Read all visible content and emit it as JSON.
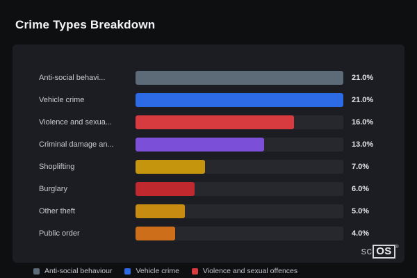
{
  "page": {
    "title": "Crime Types Breakdown"
  },
  "chart_data": {
    "type": "bar",
    "orientation": "horizontal",
    "title": "Crime Types Breakdown",
    "categories": [
      "Anti-social behavi...",
      "Vehicle crime",
      "Violence and sexua...",
      "Criminal damage an...",
      "Shoplifting",
      "Burglary",
      "Other theft",
      "Public order"
    ],
    "values": [
      21.0,
      21.0,
      16.0,
      13.0,
      7.0,
      6.0,
      5.0,
      4.0
    ],
    "value_labels": [
      "21.0%",
      "21.0%",
      "16.0%",
      "13.0%",
      "7.0%",
      "6.0%",
      "5.0%",
      "4.0%"
    ],
    "bar_colors": [
      "#5d6a78",
      "#2d6be6",
      "#d83b3f",
      "#7b4fd8",
      "#c6950e",
      "#c02a2f",
      "#c68b10",
      "#cd6e1a"
    ],
    "xmax": 21,
    "xlabel": "",
    "ylabel": "",
    "grid": false,
    "legend_position": "bottom"
  },
  "legend": {
    "items": [
      {
        "label": "Anti-social behaviour",
        "color": "#5d6a78"
      },
      {
        "label": "Vehicle crime",
        "color": "#2d6be6"
      },
      {
        "label": "Violence and sexual offences",
        "color": "#d83b3f"
      }
    ]
  },
  "brand": {
    "prefix": "sc",
    "box": "OS",
    "reg": "®"
  }
}
